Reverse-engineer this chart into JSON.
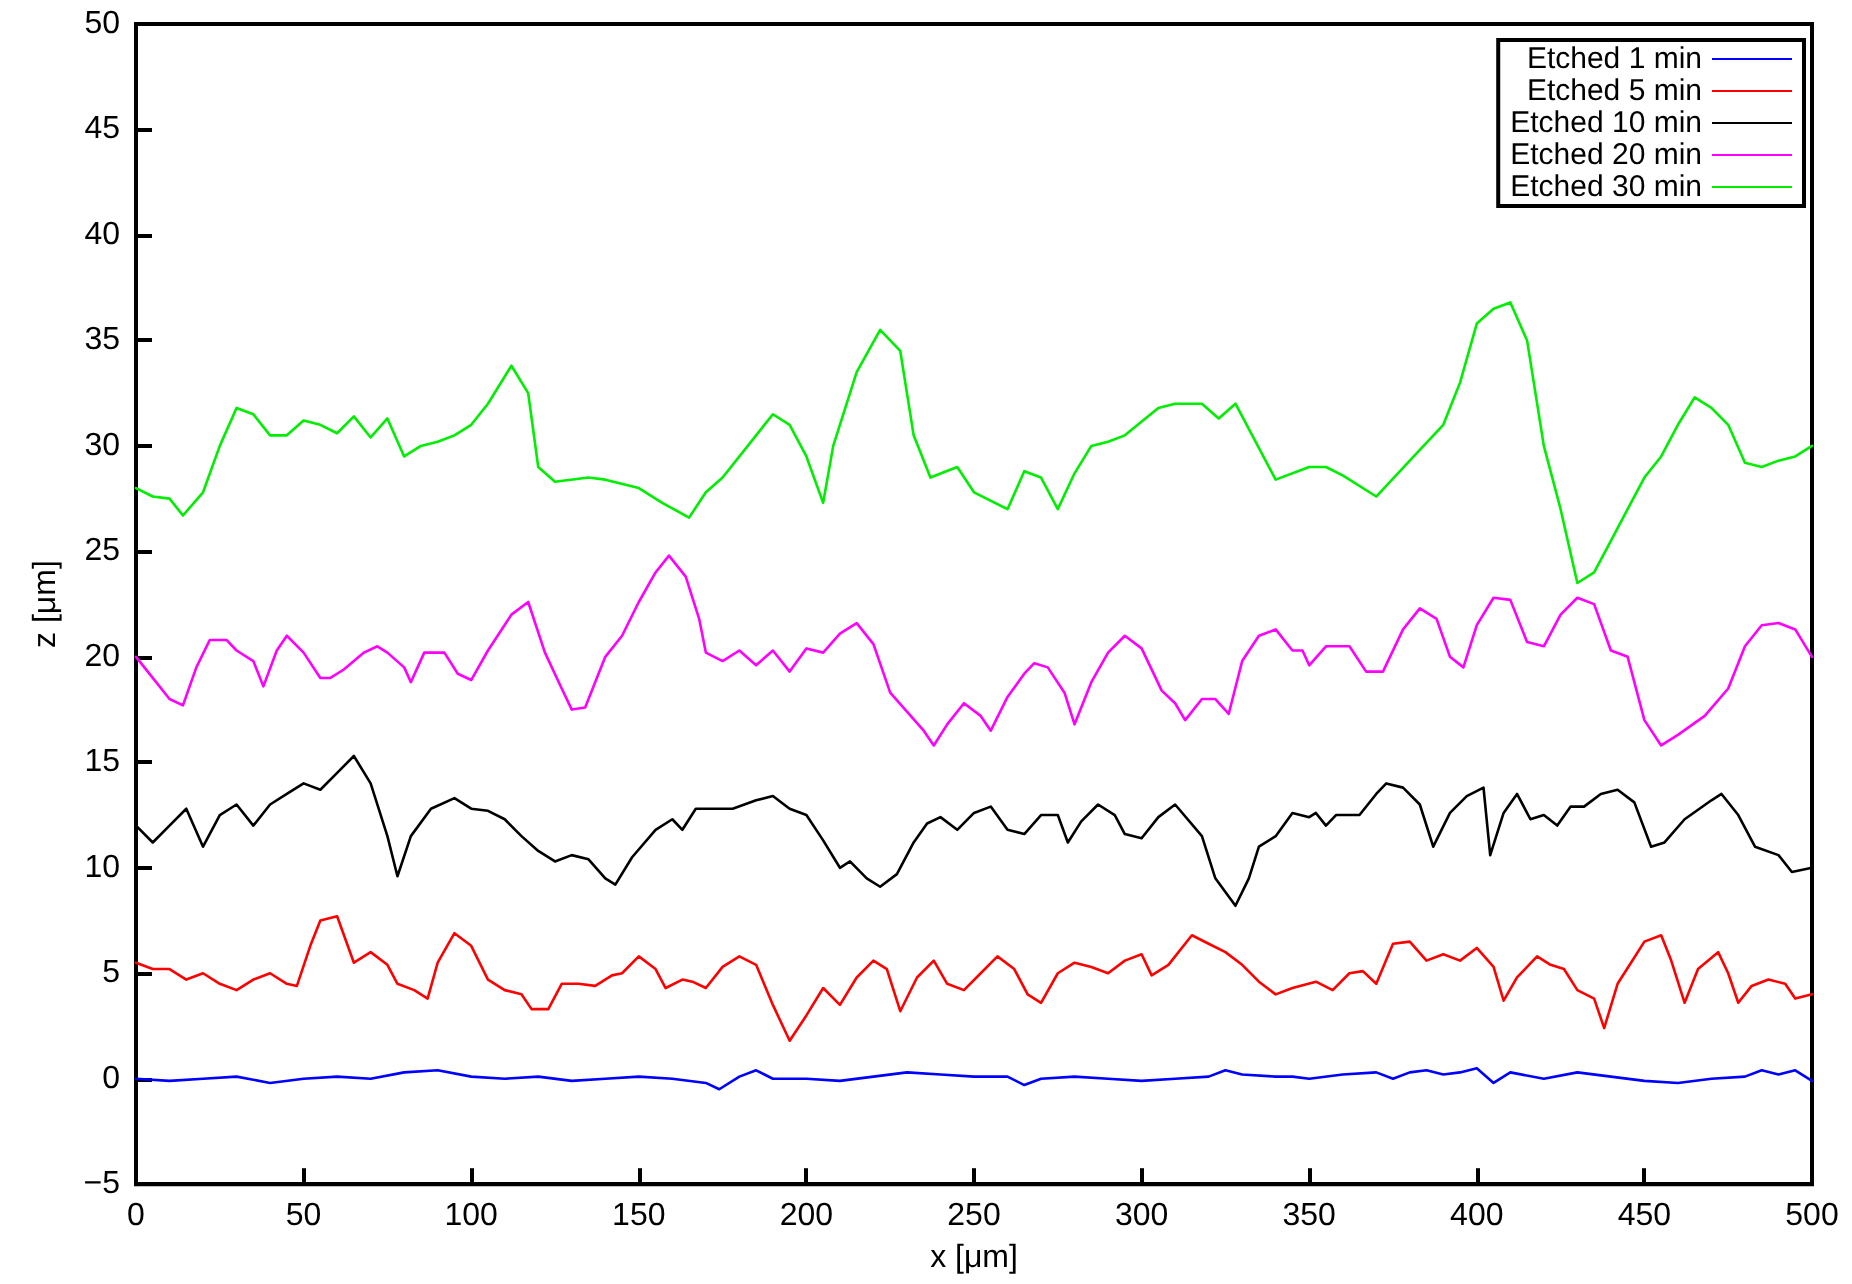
{
  "chart_data": {
    "type": "line",
    "xlabel": "x [μm]",
    "ylabel": "z [μm]",
    "xlim": [
      0,
      500
    ],
    "ylim": [
      -5,
      50
    ],
    "xticks": [
      0,
      50,
      100,
      150,
      200,
      250,
      300,
      350,
      400,
      450,
      500
    ],
    "yticks": [
      -5,
      0,
      5,
      10,
      15,
      20,
      25,
      30,
      35,
      40,
      45,
      50
    ],
    "grid": false,
    "legend": "top right",
    "marker": "none",
    "line_style": "solid",
    "series": [
      {
        "name": "Etched 1 min",
        "color": "#0000ff",
        "x": [
          0,
          10,
          20,
          30,
          40,
          50,
          60,
          70,
          80,
          90,
          100,
          110,
          120,
          130,
          140,
          150,
          160,
          170,
          174,
          180,
          185,
          190,
          200,
          210,
          220,
          230,
          240,
          250,
          260,
          265,
          270,
          280,
          290,
          300,
          310,
          320,
          325,
          330,
          340,
          345,
          350,
          360,
          370,
          375,
          380,
          385,
          390,
          395,
          400,
          405,
          410,
          420,
          430,
          440,
          450,
          460,
          470,
          480,
          485,
          490,
          495,
          500
        ],
        "values": [
          0,
          -0.1,
          0,
          0.1,
          -0.2,
          0,
          0.1,
          0,
          0.3,
          0.4,
          0.1,
          0,
          0.1,
          -0.1,
          0,
          0.1,
          0,
          -0.2,
          -0.5,
          0.1,
          0.4,
          0,
          0,
          -0.1,
          0.1,
          0.3,
          0.2,
          0.1,
          0.1,
          -0.3,
          0,
          0.1,
          0,
          -0.1,
          0,
          0.1,
          0.4,
          0.2,
          0.1,
          0.1,
          0,
          0.2,
          0.3,
          0,
          0.3,
          0.4,
          0.2,
          0.3,
          0.5,
          -0.2,
          0.3,
          0,
          0.3,
          0.1,
          -0.1,
          -0.2,
          0,
          0.1,
          0.4,
          0.2,
          0.4,
          -0.1
        ]
      },
      {
        "name": "Etched 5 min",
        "color": "#ff0000",
        "x": [
          0,
          5,
          10,
          15,
          20,
          25,
          30,
          35,
          40,
          45,
          48,
          52,
          55,
          60,
          65,
          70,
          75,
          78,
          83,
          87,
          90,
          95,
          100,
          105,
          110,
          115,
          118,
          123,
          127,
          132,
          137,
          142,
          145,
          150,
          155,
          158,
          163,
          166,
          170,
          175,
          180,
          185,
          190,
          195,
          200,
          205,
          210,
          215,
          220,
          224,
          228,
          233,
          238,
          242,
          247,
          252,
          257,
          262,
          266,
          270,
          275,
          280,
          285,
          290,
          295,
          300,
          303,
          308,
          315,
          320,
          325,
          330,
          335,
          340,
          345,
          352,
          357,
          362,
          366,
          370,
          375,
          380,
          385,
          390,
          395,
          400,
          405,
          408,
          412,
          418,
          422,
          426,
          430,
          435,
          438,
          442,
          446,
          450,
          455,
          458,
          462,
          466,
          472,
          475,
          478,
          482,
          487,
          492,
          495,
          500
        ],
        "values": [
          5.5,
          5.2,
          5.2,
          4.7,
          5.0,
          4.5,
          4.2,
          4.7,
          5.0,
          4.5,
          4.4,
          6.3,
          7.5,
          7.7,
          5.5,
          6.0,
          5.4,
          4.5,
          4.2,
          3.8,
          5.5,
          6.9,
          6.3,
          4.7,
          4.2,
          4.0,
          3.3,
          3.3,
          4.5,
          4.5,
          4.4,
          4.9,
          5.0,
          5.8,
          5.2,
          4.3,
          4.7,
          4.6,
          4.3,
          5.3,
          5.8,
          5.4,
          3.5,
          1.8,
          3,
          4.3,
          3.5,
          4.8,
          5.6,
          5.2,
          3.2,
          4.8,
          5.6,
          4.5,
          4.2,
          5.0,
          5.8,
          5.2,
          4.0,
          3.6,
          5.0,
          5.5,
          5.3,
          5.0,
          5.6,
          5.9,
          4.9,
          5.4,
          6.8,
          6.4,
          6.0,
          5.4,
          4.6,
          4.0,
          4.3,
          4.6,
          4.2,
          5.0,
          5.1,
          4.5,
          6.4,
          6.5,
          5.6,
          5.9,
          5.6,
          6.2,
          5.3,
          3.7,
          4.8,
          5.8,
          5.4,
          5.2,
          4.2,
          3.8,
          2.4,
          4.5,
          5.5,
          6.5,
          6.8,
          5.6,
          3.6,
          5.2,
          6.0,
          5.0,
          3.6,
          4.4,
          4.7,
          4.5,
          3.8,
          4.0
        ]
      },
      {
        "name": "Etched 10 min",
        "color": "#000000",
        "x": [
          0,
          5,
          10,
          15,
          20,
          25,
          30,
          35,
          40,
          45,
          50,
          55,
          60,
          65,
          70,
          75,
          78,
          82,
          88,
          95,
          100,
          105,
          110,
          115,
          120,
          125,
          130,
          135,
          140,
          143,
          148,
          155,
          160,
          163,
          167,
          172,
          178,
          185,
          190,
          195,
          200,
          205,
          210,
          213,
          218,
          222,
          227,
          232,
          236,
          240,
          245,
          250,
          255,
          260,
          265,
          270,
          275,
          278,
          282,
          287,
          292,
          295,
          300,
          305,
          310,
          318,
          322,
          328,
          332,
          335,
          340,
          345,
          350,
          352,
          355,
          358,
          365,
          370,
          373,
          378,
          383,
          387,
          392,
          397,
          402,
          404,
          408,
          412,
          416,
          420,
          424,
          428,
          432,
          437,
          442,
          447,
          452,
          456,
          462,
          470,
          473,
          478,
          483,
          490,
          494,
          500
        ],
        "values": [
          12,
          11.2,
          12,
          12.8,
          11,
          12.5,
          13,
          12,
          13,
          13.5,
          14,
          13.7,
          14.5,
          15.3,
          14,
          11.5,
          9.6,
          11.5,
          12.8,
          13.3,
          12.8,
          12.7,
          12.3,
          11.5,
          10.8,
          10.3,
          10.6,
          10.4,
          9.5,
          9.2,
          10.5,
          11.8,
          12.3,
          11.8,
          12.8,
          12.8,
          12.8,
          13.2,
          13.4,
          12.8,
          12.5,
          11.3,
          10,
          10.3,
          9.5,
          9.1,
          9.7,
          11.2,
          12.1,
          12.4,
          11.8,
          12.6,
          12.9,
          11.8,
          11.6,
          12.5,
          12.5,
          11.2,
          12.2,
          13,
          12.5,
          11.6,
          11.4,
          12.4,
          13,
          11.5,
          9.5,
          8.2,
          9.5,
          11,
          11.5,
          12.6,
          12.4,
          12.6,
          12,
          12.5,
          12.5,
          13.5,
          14,
          13.8,
          13,
          11,
          12.6,
          13.4,
          13.8,
          10.6,
          12.6,
          13.5,
          12.3,
          12.5,
          12.0,
          12.9,
          12.9,
          13.5,
          13.7,
          13.1,
          11,
          11.2,
          12.3,
          13.2,
          13.5,
          12.5,
          11,
          10.6,
          9.8,
          10
        ]
      },
      {
        "name": "Etched 20 min",
        "color": "#ff00ff",
        "x": [
          0,
          5,
          10,
          14,
          18,
          22,
          27,
          30,
          35,
          38,
          42,
          45,
          50,
          55,
          58,
          62,
          68,
          72,
          75,
          80,
          82,
          86,
          92,
          96,
          100,
          105,
          112,
          117,
          122,
          127,
          130,
          134,
          140,
          145,
          150,
          155,
          159,
          164,
          168,
          170,
          175,
          180,
          185,
          190,
          195,
          200,
          205,
          210,
          215,
          220,
          225,
          230,
          235,
          238,
          242,
          247,
          252,
          255,
          260,
          265,
          268,
          272,
          277,
          280,
          285,
          290,
          295,
          300,
          306,
          310,
          313,
          318,
          322,
          326,
          330,
          335,
          340,
          345,
          348,
          350,
          355,
          362,
          367,
          372,
          378,
          383,
          388,
          392,
          396,
          400,
          405,
          410,
          415,
          420,
          425,
          430,
          435,
          440,
          445,
          450,
          455,
          460,
          468,
          475,
          480,
          485,
          490,
          495,
          500
        ],
        "values": [
          20,
          19,
          18,
          17.7,
          19.5,
          20.8,
          20.8,
          20.3,
          19.8,
          18.6,
          20.3,
          21,
          20.2,
          19,
          19,
          19.4,
          20.2,
          20.5,
          20.2,
          19.5,
          18.8,
          20.2,
          20.2,
          19.2,
          18.9,
          20.3,
          22,
          22.6,
          20.2,
          18.5,
          17.5,
          17.6,
          20,
          21,
          22.6,
          24,
          24.8,
          23.8,
          21.8,
          20.2,
          19.8,
          20.3,
          19.6,
          20.3,
          19.3,
          20.4,
          20.2,
          21.1,
          21.6,
          20.6,
          18.3,
          17.4,
          16.5,
          15.8,
          16.8,
          17.8,
          17.2,
          16.5,
          18.1,
          19.2,
          19.7,
          19.5,
          18.3,
          16.8,
          18.8,
          20.2,
          21,
          20.4,
          18.4,
          17.8,
          17,
          18,
          18,
          17.3,
          19.8,
          21,
          21.3,
          20.3,
          20.3,
          19.6,
          20.5,
          20.5,
          19.3,
          19.3,
          21.3,
          22.3,
          21.8,
          20,
          19.5,
          21.5,
          22.8,
          22.7,
          20.7,
          20.5,
          22,
          22.8,
          22.5,
          20.3,
          20,
          17,
          15.8,
          16.3,
          17.2,
          18.5,
          20.5,
          21.5,
          21.6,
          21.3,
          20
        ]
      },
      {
        "name": "Etched 30 min",
        "color": "#00ee00",
        "x": [
          0,
          5,
          10,
          14,
          20,
          25,
          30,
          35,
          40,
          45,
          50,
          55,
          60,
          65,
          70,
          75,
          80,
          85,
          90,
          95,
          100,
          105,
          112,
          117,
          120,
          125,
          135,
          140,
          150,
          157,
          165,
          170,
          175,
          185,
          190,
          195,
          200,
          205,
          208,
          215,
          222,
          228,
          232,
          237,
          245,
          250,
          260,
          265,
          270,
          275,
          280,
          285,
          290,
          295,
          305,
          310,
          318,
          323,
          328,
          340,
          350,
          355,
          360,
          370,
          380,
          390,
          395,
          400,
          405,
          410,
          415,
          420,
          425,
          430,
          435,
          440,
          445,
          450,
          455,
          460,
          465,
          470,
          475,
          480,
          485,
          490,
          495,
          500
        ],
        "values": [
          28,
          27.6,
          27.5,
          26.7,
          27.8,
          30,
          31.8,
          31.5,
          30.5,
          30.5,
          31.2,
          31,
          30.6,
          31.4,
          30.4,
          31.3,
          29.5,
          30,
          30.2,
          30.5,
          31,
          32,
          33.8,
          32.5,
          29,
          28.3,
          28.5,
          28.4,
          28,
          27.3,
          26.6,
          27.8,
          28.5,
          30.5,
          31.5,
          31,
          29.5,
          27.3,
          30,
          33.5,
          35.5,
          34.5,
          30.5,
          28.5,
          29,
          27.8,
          27,
          28.8,
          28.5,
          27,
          28.7,
          30,
          30.2,
          30.5,
          31.8,
          32,
          32,
          31.3,
          32,
          28.4,
          29,
          29,
          28.6,
          27.6,
          29.3,
          31,
          33,
          35.8,
          36.5,
          36.8,
          35,
          30,
          27,
          23.5,
          24,
          25.5,
          27,
          28.5,
          29.5,
          31,
          32.3,
          31.8,
          31,
          29.2,
          29,
          29.3,
          29.5,
          30
        ]
      }
    ]
  }
}
